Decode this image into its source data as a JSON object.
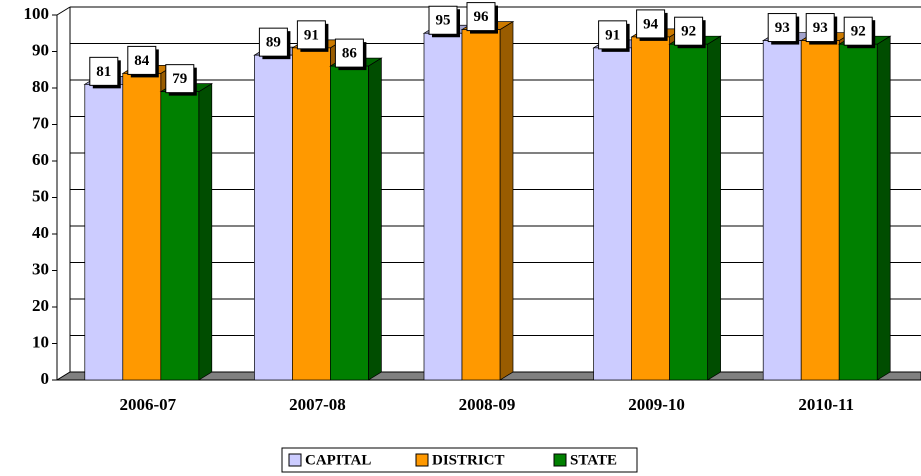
{
  "chart_data": {
    "type": "bar3d",
    "categories": [
      "2006-07",
      "2007-08",
      "2008-09",
      "2009-10",
      "2010-11"
    ],
    "series": [
      {
        "name": "CAPITAL",
        "color": "#ccccff",
        "values": [
          81,
          89,
          95,
          91,
          93
        ]
      },
      {
        "name": "DISTRICT",
        "color": "#ff9900",
        "values": [
          84,
          91,
          96,
          94,
          93
        ]
      },
      {
        "name": "STATE",
        "color": "#008000",
        "values": [
          79,
          86,
          null,
          92,
          92
        ]
      }
    ],
    "ylim": [
      0,
      100
    ],
    "yticks": [
      0,
      10,
      20,
      30,
      40,
      50,
      60,
      70,
      80,
      90,
      100
    ],
    "grid": true,
    "legend": "bottom"
  }
}
